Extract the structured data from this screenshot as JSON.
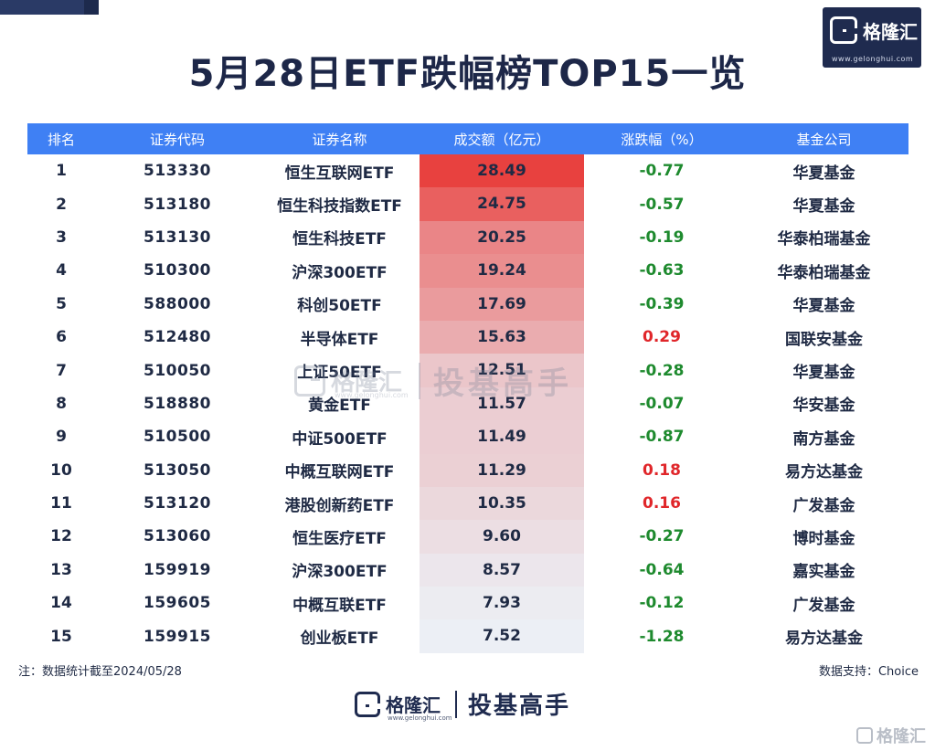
{
  "title": "5月28日ETF跌幅榜TOP15一览",
  "logo": {
    "text": "格隆汇",
    "url": "www.gelonghui.com"
  },
  "columns": [
    "排名",
    "证券代码",
    "证券名称",
    "成交额（亿元）",
    "涨跌幅（%）",
    "基金公司"
  ],
  "colors": {
    "header_bg": "#3f80f4",
    "neg": "#1e8a2e",
    "pos": "#e0262a",
    "bar_max": "#e8413f",
    "bar_min": "#eceff5"
  },
  "chart_data": {
    "type": "table",
    "columns": [
      "排名",
      "证券代码",
      "证券名称",
      "成交额（亿元）",
      "涨跌幅（%）",
      "基金公司"
    ],
    "rows": [
      {
        "rank": "1",
        "code": "513330",
        "name": "恒生互联网ETF",
        "turnover": "28.49",
        "change": "-0.77",
        "company": "华夏基金"
      },
      {
        "rank": "2",
        "code": "513180",
        "name": "恒生科技指数ETF",
        "turnover": "24.75",
        "change": "-0.57",
        "company": "华夏基金"
      },
      {
        "rank": "3",
        "code": "513130",
        "name": "恒生科技ETF",
        "turnover": "20.25",
        "change": "-0.19",
        "company": "华泰柏瑞基金"
      },
      {
        "rank": "4",
        "code": "510300",
        "name": "沪深300ETF",
        "turnover": "19.24",
        "change": "-0.63",
        "company": "华泰柏瑞基金"
      },
      {
        "rank": "5",
        "code": "588000",
        "name": "科创50ETF",
        "turnover": "17.69",
        "change": "-0.39",
        "company": "华夏基金"
      },
      {
        "rank": "6",
        "code": "512480",
        "name": "半导体ETF",
        "turnover": "15.63",
        "change": "0.29",
        "company": "国联安基金"
      },
      {
        "rank": "7",
        "code": "510050",
        "name": "上证50ETF",
        "turnover": "12.51",
        "change": "-0.28",
        "company": "华夏基金"
      },
      {
        "rank": "8",
        "code": "518880",
        "name": "黄金ETF",
        "turnover": "11.57",
        "change": "-0.07",
        "company": "华安基金"
      },
      {
        "rank": "9",
        "code": "510500",
        "name": "中证500ETF",
        "turnover": "11.49",
        "change": "-0.87",
        "company": "南方基金"
      },
      {
        "rank": "10",
        "code": "513050",
        "name": "中概互联网ETF",
        "turnover": "11.29",
        "change": "0.18",
        "company": "易方达基金"
      },
      {
        "rank": "11",
        "code": "513120",
        "name": "港股创新药ETF",
        "turnover": "10.35",
        "change": "0.16",
        "company": "广发基金"
      },
      {
        "rank": "12",
        "code": "513060",
        "name": "恒生医疗ETF",
        "turnover": "9.60",
        "change": "-0.27",
        "company": "博时基金"
      },
      {
        "rank": "13",
        "code": "159919",
        "name": "沪深300ETF",
        "turnover": "8.57",
        "change": "-0.64",
        "company": "嘉实基金"
      },
      {
        "rank": "14",
        "code": "159605",
        "name": "中概互联ETF",
        "turnover": "7.93",
        "change": "-0.12",
        "company": "广发基金"
      },
      {
        "rank": "15",
        "code": "159915",
        "name": "创业板ETF",
        "turnover": "7.52",
        "change": "-1.28",
        "company": "易方达基金"
      }
    ]
  },
  "footnote": "注：数据统计截至2024/05/28",
  "source": "数据支持：Choice",
  "watermark": {
    "brand": "格隆汇",
    "url": "www.gelonghui.com",
    "slogan": "投基高手"
  },
  "bottom_brand": {
    "brand": "格隆汇",
    "url": "www.gelonghui.com",
    "slogan": "投基高手"
  },
  "corner_watermark": "格隆汇"
}
